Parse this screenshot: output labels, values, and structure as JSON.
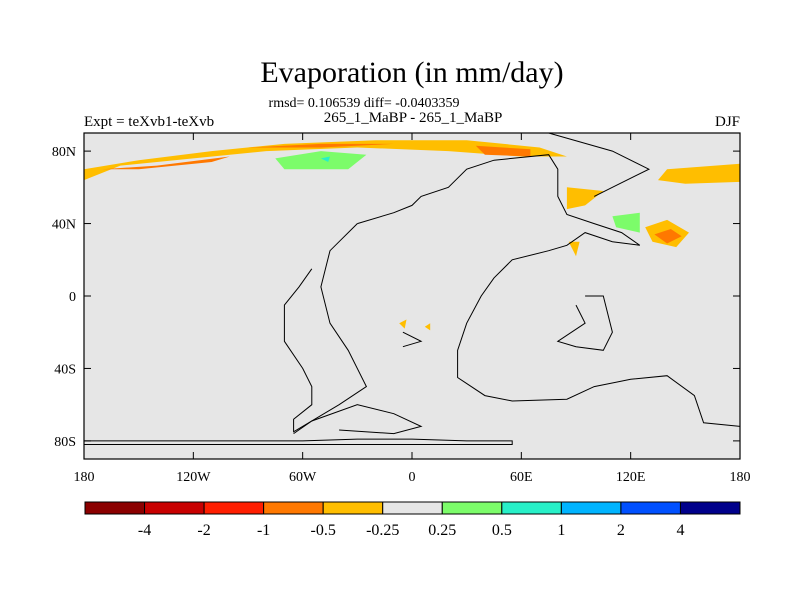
{
  "chart_data": {
    "type": "heatmap",
    "title": "Evaporation (in mm/day)",
    "subtitle": "rmsd= 0.106539 diff= -0.0403359",
    "left_label": "Expt = teXvb1-teXvb",
    "center_label": "265_1_MaBP - 265_1_MaBP",
    "right_label": "DJF",
    "x_ticks": [
      {
        "value": -180,
        "label": "180"
      },
      {
        "value": -120,
        "label": "120W"
      },
      {
        "value": -60,
        "label": "60W"
      },
      {
        "value": 0,
        "label": "0"
      },
      {
        "value": 60,
        "label": "60E"
      },
      {
        "value": 120,
        "label": "120E"
      },
      {
        "value": 180,
        "label": "180"
      }
    ],
    "y_ticks": [
      {
        "value": 80,
        "label": "80N"
      },
      {
        "value": 40,
        "label": "40N"
      },
      {
        "value": 0,
        "label": "0"
      },
      {
        "value": -40,
        "label": "40S"
      },
      {
        "value": -80,
        "label": "80S"
      }
    ],
    "xlim": [
      -180,
      180
    ],
    "ylim": [
      -90,
      90
    ],
    "colorbar": {
      "colors": [
        "#8b0000",
        "#c80000",
        "#ff1e00",
        "#ff7800",
        "#ffbe00",
        "#e6e6e6",
        "#7cfc6a",
        "#28f0c8",
        "#00b4ff",
        "#0050ff",
        "#00008b"
      ],
      "labels": [
        "-4",
        "-2",
        "-1",
        "-0.5",
        "-0.25",
        "0.25",
        "0.5",
        "1",
        "2",
        "4"
      ]
    },
    "background_color": "#e6e6e6",
    "anomaly_regions": [
      {
        "level": "-0.25",
        "color": "#ffbe00",
        "points": [
          [
            -180,
            70
          ],
          [
            -150,
            75
          ],
          [
            -110,
            80
          ],
          [
            -70,
            84
          ],
          [
            -20,
            86
          ],
          [
            30,
            86
          ],
          [
            70,
            82
          ],
          [
            85,
            77
          ],
          [
            60,
            77
          ],
          [
            20,
            80
          ],
          [
            -30,
            82
          ],
          [
            -80,
            80
          ],
          [
            -120,
            76
          ],
          [
            -160,
            72
          ],
          [
            -180,
            64
          ]
        ]
      },
      {
        "level": "-0.25",
        "color": "#ffbe00",
        "points": [
          [
            140,
            70
          ],
          [
            180,
            73
          ],
          [
            180,
            63
          ],
          [
            150,
            62
          ],
          [
            135,
            64
          ]
        ]
      },
      {
        "level": "-0.25",
        "color": "#ffbe00",
        "points": [
          [
            85,
            60
          ],
          [
            105,
            58
          ],
          [
            95,
            50
          ],
          [
            85,
            48
          ]
        ]
      },
      {
        "level": "-0.25",
        "color": "#ffbe00",
        "points": [
          [
            128,
            38
          ],
          [
            140,
            42
          ],
          [
            152,
            35
          ],
          [
            145,
            27
          ],
          [
            132,
            30
          ]
        ]
      },
      {
        "level": "-0.25",
        "color": "#ffbe00",
        "points": [
          [
            86,
            30
          ],
          [
            92,
            30
          ],
          [
            90,
            22
          ]
        ]
      },
      {
        "level": "-0.25",
        "color": "#ffbe00",
        "points": [
          [
            -7,
            -15
          ],
          [
            -3,
            -13
          ],
          [
            -4,
            -18
          ]
        ]
      },
      {
        "level": "-0.25",
        "color": "#ffbe00",
        "points": [
          [
            7,
            -17
          ],
          [
            10,
            -15
          ],
          [
            10,
            -19
          ]
        ]
      },
      {
        "level": "-0.5",
        "color": "#ff7800",
        "points": [
          [
            -170,
            70
          ],
          [
            -140,
            72
          ],
          [
            -100,
            77
          ],
          [
            -110,
            74
          ],
          [
            -150,
            70
          ]
        ]
      },
      {
        "level": "-0.5",
        "color": "#ff7800",
        "points": [
          [
            -90,
            82
          ],
          [
            -50,
            84
          ],
          [
            -10,
            84
          ],
          [
            -50,
            82
          ]
        ]
      },
      {
        "level": "-0.5",
        "color": "#ff7800",
        "points": [
          [
            35,
            83
          ],
          [
            65,
            81
          ],
          [
            65,
            77
          ],
          [
            40,
            78
          ]
        ]
      },
      {
        "level": "-0.5",
        "color": "#ff7800",
        "points": [
          [
            133,
            34
          ],
          [
            142,
            37
          ],
          [
            148,
            33
          ],
          [
            140,
            29
          ]
        ]
      },
      {
        "level": "0.25",
        "color": "#7cfc6a",
        "points": [
          [
            -75,
            76
          ],
          [
            -50,
            80
          ],
          [
            -25,
            78
          ],
          [
            -35,
            70
          ],
          [
            -70,
            70
          ]
        ]
      },
      {
        "level": "0.25",
        "color": "#7cfc6a",
        "points": [
          [
            110,
            44
          ],
          [
            125,
            46
          ],
          [
            125,
            35
          ],
          [
            112,
            38
          ]
        ]
      },
      {
        "level": "0.5",
        "color": "#28f0c8",
        "points": [
          [
            -50,
            76
          ],
          [
            -45,
            77
          ],
          [
            -46,
            74
          ]
        ]
      }
    ],
    "coastlines": [
      [
        [
          -180,
          -80
        ],
        [
          -60,
          -80
        ],
        [
          -30,
          -79
        ],
        [
          0,
          -79
        ],
        [
          30,
          -80
        ],
        [
          55,
          -80
        ],
        [
          55,
          -82
        ],
        [
          -180,
          -82
        ]
      ],
      [
        [
          -65,
          -76
        ],
        [
          -55,
          -69
        ],
        [
          -30,
          -60
        ],
        [
          -10,
          -65
        ],
        [
          5,
          -72
        ],
        [
          -10,
          -76
        ],
        [
          -40,
          -74
        ]
      ],
      [
        [
          -30,
          40
        ],
        [
          -10,
          46
        ],
        [
          0,
          50
        ],
        [
          5,
          55
        ],
        [
          20,
          60
        ],
        [
          30,
          70
        ],
        [
          45,
          75
        ],
        [
          75,
          78
        ],
        [
          80,
          70
        ],
        [
          80,
          55
        ],
        [
          85,
          45
        ],
        [
          100,
          40
        ],
        [
          115,
          35
        ],
        [
          125,
          28
        ],
        [
          110,
          30
        ],
        [
          95,
          35
        ],
        [
          85,
          28
        ],
        [
          75,
          25
        ],
        [
          55,
          20
        ],
        [
          45,
          10
        ],
        [
          38,
          0
        ],
        [
          30,
          -15
        ],
        [
          25,
          -30
        ],
        [
          25,
          -45
        ],
        [
          40,
          -55
        ],
        [
          55,
          -58
        ],
        [
          85,
          -57
        ],
        [
          100,
          -50
        ],
        [
          120,
          -46
        ],
        [
          140,
          -44
        ],
        [
          155,
          -55
        ],
        [
          160,
          -70
        ],
        [
          180,
          -72
        ]
      ],
      [
        [
          -30,
          40
        ],
        [
          -45,
          25
        ],
        [
          -50,
          5
        ],
        [
          -45,
          -15
        ],
        [
          -35,
          -30
        ],
        [
          -25,
          -50
        ],
        [
          -40,
          -60
        ],
        [
          -65,
          -75
        ],
        [
          -65,
          -68
        ],
        [
          -55,
          -60
        ],
        [
          -55,
          -50
        ],
        [
          -60,
          -40
        ],
        [
          -70,
          -25
        ],
        [
          -70,
          -5
        ],
        [
          -62,
          5
        ],
        [
          -55,
          15
        ]
      ],
      [
        [
          95,
          0
        ],
        [
          105,
          0
        ],
        [
          110,
          -20
        ],
        [
          105,
          -30
        ],
        [
          90,
          -28
        ],
        [
          80,
          -25
        ],
        [
          95,
          -15
        ],
        [
          90,
          -5
        ]
      ],
      [
        [
          -5,
          -20
        ],
        [
          5,
          -25
        ],
        [
          -5,
          -28
        ]
      ],
      [
        [
          60,
          90
        ],
        [
          75,
          90
        ],
        [
          110,
          80
        ],
        [
          130,
          70
        ],
        [
          110,
          60
        ],
        [
          100,
          55
        ]
      ]
    ]
  }
}
